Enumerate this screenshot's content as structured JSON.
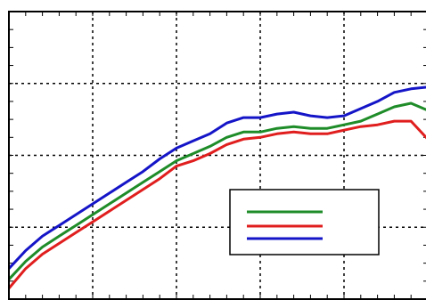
{
  "chart_data": {
    "type": "line",
    "title": "",
    "xlabel": "",
    "ylabel": "",
    "grid": true,
    "legend_position": "lower-right",
    "series": [
      {
        "color": "#1e8c28",
        "x": [
          0,
          1,
          2,
          3,
          4,
          5,
          6,
          7,
          8,
          9,
          10,
          11,
          12,
          13,
          14,
          15,
          16,
          17,
          18,
          19,
          20,
          21,
          22,
          23,
          24,
          25
        ],
        "values": [
          0.55,
          1.05,
          1.45,
          1.75,
          2.05,
          2.35,
          2.65,
          2.95,
          3.25,
          3.55,
          3.85,
          4.05,
          4.25,
          4.5,
          4.65,
          4.65,
          4.75,
          4.8,
          4.75,
          4.75,
          4.85,
          4.95,
          5.15,
          5.35,
          5.45,
          5.25
        ]
      },
      {
        "color": "#e01e1e",
        "x": [
          0,
          1,
          2,
          3,
          4,
          5,
          6,
          7,
          8,
          9,
          10,
          11,
          12,
          13,
          14,
          15,
          16,
          17,
          18,
          19,
          20,
          21,
          22,
          23,
          24,
          25
        ],
        "values": [
          0.3,
          0.85,
          1.25,
          1.55,
          1.85,
          2.15,
          2.45,
          2.75,
          3.05,
          3.35,
          3.7,
          3.85,
          4.05,
          4.3,
          4.45,
          4.5,
          4.6,
          4.65,
          4.6,
          4.6,
          4.7,
          4.8,
          4.85,
          4.95,
          4.95,
          4.45
        ]
      },
      {
        "color": "#1515c8",
        "x": [
          0,
          1,
          2,
          3,
          4,
          5,
          6,
          7,
          8,
          9,
          10,
          11,
          12,
          13,
          14,
          15,
          16,
          17,
          18,
          19,
          20,
          21,
          22,
          23,
          24,
          25
        ],
        "values": [
          0.85,
          1.35,
          1.75,
          2.05,
          2.35,
          2.65,
          2.95,
          3.25,
          3.55,
          3.9,
          4.2,
          4.4,
          4.6,
          4.9,
          5.05,
          5.05,
          5.15,
          5.2,
          5.1,
          5.05,
          5.1,
          5.3,
          5.5,
          5.75,
          5.85,
          5.9
        ]
      }
    ],
    "xlim": [
      0,
      25
    ],
    "ylim": [
      0,
      8
    ]
  }
}
